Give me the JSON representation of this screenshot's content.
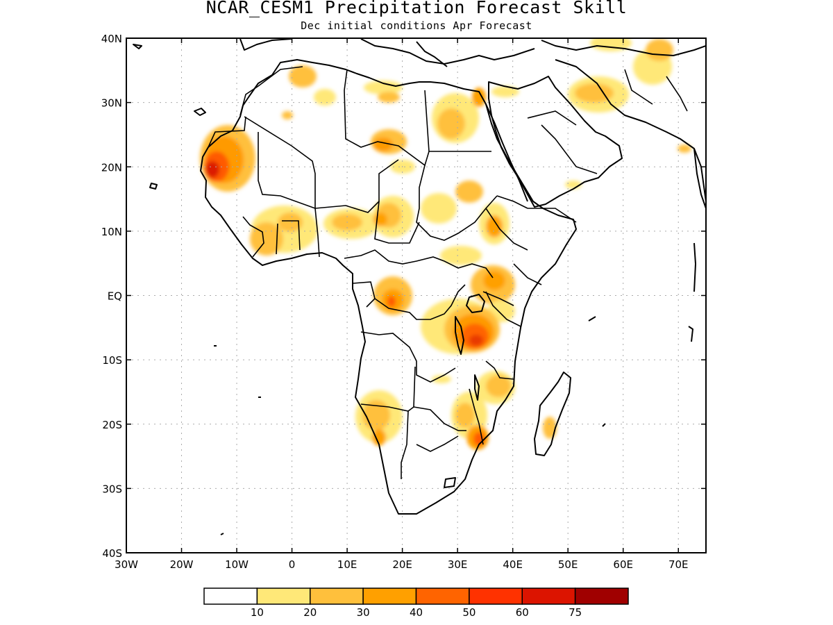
{
  "title": "NCAR_CESM1 Precipitation Forecast Skill",
  "subtitle": "Dec initial conditions  Apr Forecast",
  "map": {
    "region": "Africa",
    "lon_range": [
      -30,
      75
    ],
    "lat_range": [
      -40,
      40
    ],
    "grid": "dotted",
    "lon_ticks": [
      "30W",
      "20W",
      "10W",
      "0",
      "10E",
      "20E",
      "30E",
      "40E",
      "50E",
      "60E",
      "70E"
    ],
    "lat_ticks": [
      "40N",
      "30N",
      "20N",
      "10N",
      "EQ",
      "10S",
      "20S",
      "30S",
      "40S"
    ]
  },
  "colorbar": {
    "labels": [
      "10",
      "20",
      "30",
      "40",
      "50",
      "60",
      "75"
    ],
    "colors": [
      "#ffffff",
      "#ffe878",
      "#ffc03c",
      "#ffa000",
      "#ff6400",
      "#ff3200",
      "#dc1400",
      "#a00000"
    ]
  }
}
